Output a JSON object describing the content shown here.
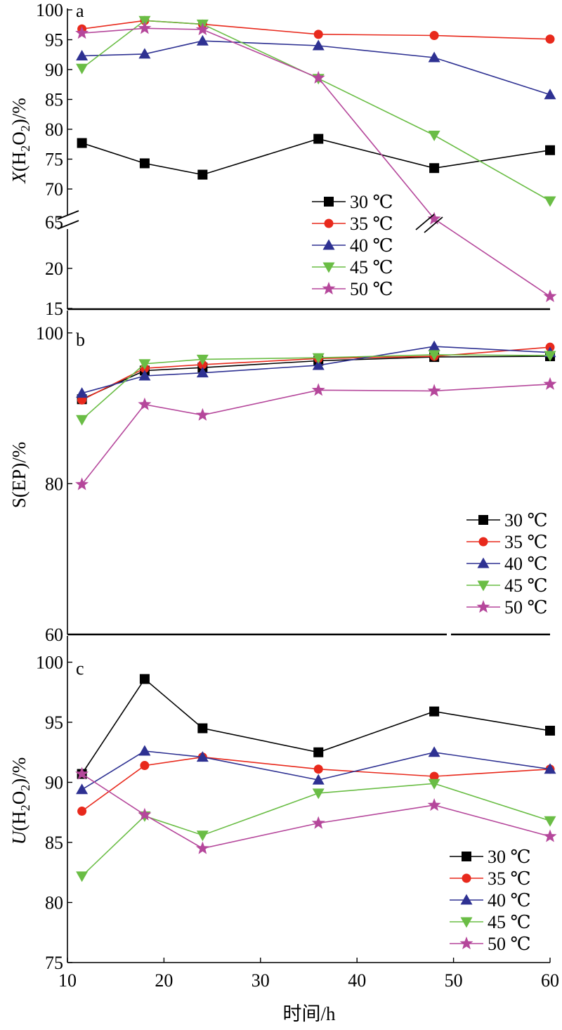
{
  "chart_data": [
    {
      "type": "line",
      "panel_label": "a",
      "ylabel_var": "X",
      "ylabel_rest": "(H",
      "ylabel_sub": "2",
      "ylabel_mid": "O",
      "ylabel_end": ")/%",
      "xlim": [
        10,
        60
      ],
      "yaxis_break": true,
      "y_ticks_upper": [
        70,
        75,
        80,
        85,
        90,
        95,
        100
      ],
      "y_ticks_lower": [
        15,
        20
      ],
      "y_tick_break_label": "65",
      "x": [
        11.5,
        18,
        24,
        36,
        48,
        60
      ],
      "series": [
        {
          "name": "30 ℃",
          "color": "#000000",
          "marker": "square",
          "values": [
            77.7,
            74.3,
            72.4,
            78.4,
            73.5,
            76.5
          ]
        },
        {
          "name": "35 ℃",
          "color": "#e8291c",
          "marker": "circle",
          "values": [
            96.8,
            98.2,
            97.6,
            95.9,
            95.7,
            95.1
          ]
        },
        {
          "name": "40 ℃",
          "color": "#2e3192",
          "marker": "triangle-up",
          "values": [
            92.3,
            92.6,
            94.8,
            94.0,
            92.0,
            85.8
          ]
        },
        {
          "name": "45 ℃",
          "color": "#6abd45",
          "marker": "triangle-down",
          "values": [
            90.2,
            98.2,
            97.6,
            88.5,
            79.0,
            68.0
          ]
        },
        {
          "name": "50 ℃",
          "color": "#b5479b",
          "marker": "star",
          "values": [
            96.1,
            96.9,
            96.7,
            88.6,
            65,
            16.5
          ]
        }
      ],
      "legend_position": "bottom-right"
    },
    {
      "type": "line",
      "panel_label": "b",
      "ylabel_text": "S(EP)/%",
      "xlim": [
        10,
        60
      ],
      "ylim": [
        60,
        100
      ],
      "y_ticks": [
        60,
        80,
        100
      ],
      "x": [
        11.5,
        18,
        24,
        36,
        48,
        60
      ],
      "series": [
        {
          "name": "30 ℃",
          "color": "#000000",
          "marker": "square",
          "values": [
            91.2,
            95.0,
            95.4,
            96.3,
            96.8,
            96.9
          ]
        },
        {
          "name": "35 ℃",
          "color": "#e8291c",
          "marker": "circle",
          "values": [
            91.1,
            95.3,
            95.8,
            96.6,
            96.9,
            98.1
          ]
        },
        {
          "name": "40 ℃",
          "color": "#2e3192",
          "marker": "triangle-up",
          "values": [
            92.0,
            94.3,
            94.7,
            95.7,
            98.2,
            97.4
          ]
        },
        {
          "name": "45 ℃",
          "color": "#6abd45",
          "marker": "triangle-down",
          "values": [
            88.5,
            95.9,
            96.5,
            96.7,
            97.1,
            97.0
          ]
        },
        {
          "name": "50 ℃",
          "color": "#b5479b",
          "marker": "star",
          "values": [
            79.9,
            90.5,
            89.1,
            92.4,
            92.3,
            93.2
          ]
        }
      ],
      "legend_position": "bottom-right"
    },
    {
      "type": "line",
      "panel_label": "c",
      "ylabel_var": "U",
      "ylabel_rest": "(H",
      "ylabel_sub": "2",
      "ylabel_mid": "O",
      "ylabel_end": ")/%",
      "xlim": [
        10,
        60
      ],
      "ylim": [
        75,
        100
      ],
      "y_ticks": [
        75,
        80,
        85,
        90,
        95,
        100
      ],
      "x_ticks": [
        10,
        20,
        30,
        40,
        50,
        60
      ],
      "xlabel": "时间/h",
      "x": [
        11.5,
        18,
        24,
        36,
        48,
        60
      ],
      "series": [
        {
          "name": "30 ℃",
          "color": "#000000",
          "marker": "square",
          "values": [
            90.7,
            98.6,
            94.5,
            92.5,
            95.9,
            94.3
          ]
        },
        {
          "name": "35 ℃",
          "color": "#e8291c",
          "marker": "circle",
          "values": [
            87.6,
            91.4,
            92.1,
            91.1,
            90.5,
            91.1
          ]
        },
        {
          "name": "40 ℃",
          "color": "#2e3192",
          "marker": "triangle-up",
          "values": [
            89.4,
            92.6,
            92.1,
            90.2,
            92.5,
            91.1
          ]
        },
        {
          "name": "45 ℃",
          "color": "#6abd45",
          "marker": "triangle-down",
          "values": [
            82.2,
            87.2,
            85.6,
            89.1,
            89.9,
            86.8
          ]
        },
        {
          "name": "50 ℃",
          "color": "#b5479b",
          "marker": "star",
          "values": [
            90.7,
            87.3,
            84.5,
            86.6,
            88.1,
            85.5
          ]
        }
      ],
      "legend_position": "bottom-right"
    }
  ]
}
